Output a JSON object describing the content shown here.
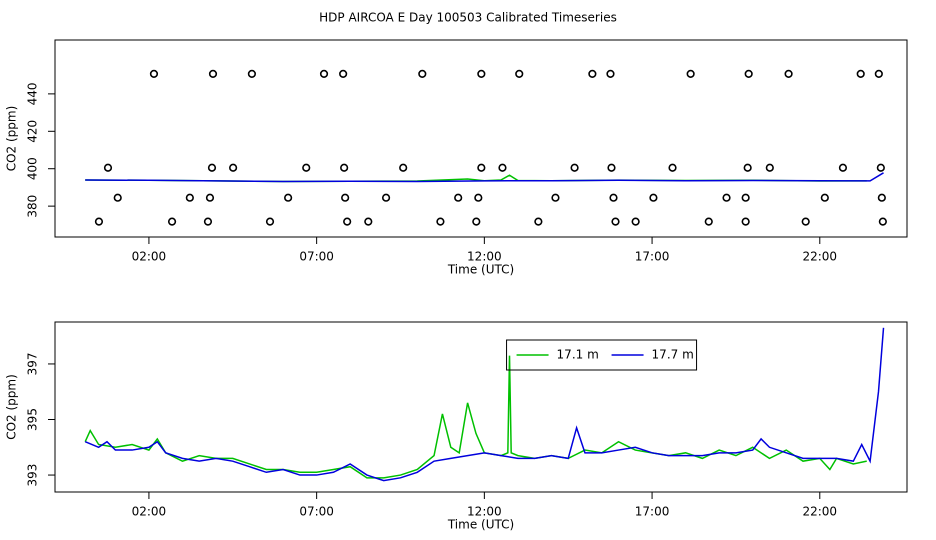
{
  "chart_data": [
    {
      "type": "line",
      "title": "HDP AIRCOA E  Day 100503  Calibrated Timeseries",
      "x_label": "Time (UTC)",
      "y_label": "CO2 (ppm)",
      "xlim": [
        -0.8,
        24.6
      ],
      "ylim": [
        363.5,
        468.8
      ],
      "xticks": [
        {
          "value": 2,
          "label": "02:00"
        },
        {
          "value": 7,
          "label": "07:00"
        },
        {
          "value": 12,
          "label": "12:00"
        },
        {
          "value": 17,
          "label": "17:00"
        },
        {
          "value": 22,
          "label": "22:00"
        }
      ],
      "yticks": [
        380,
        400,
        420,
        440
      ],
      "legend": false,
      "series": [
        {
          "type": "line",
          "color": "#00c000",
          "x": [
            0.1,
            2,
            4,
            6,
            8,
            10,
            11.5,
            12,
            12.5,
            12.75,
            13,
            14,
            16,
            18,
            20,
            22,
            23.4
          ],
          "values": [
            394.0,
            393.8,
            393.5,
            393.2,
            393.3,
            393.4,
            394.5,
            393.6,
            394.0,
            396.5,
            393.7,
            393.6,
            393.9,
            393.7,
            393.8,
            393.4,
            393.5
          ]
        },
        {
          "type": "line",
          "color": "#0000dd",
          "x": [
            0.1,
            2,
            4,
            6,
            8,
            10,
            12,
            14,
            16,
            18,
            20,
            22,
            23.5,
            23.9
          ],
          "values": [
            394.0,
            393.8,
            393.5,
            393.2,
            393.3,
            393.2,
            393.5,
            393.6,
            393.8,
            393.6,
            393.7,
            393.6,
            393.5,
            397.8
          ]
        },
        {
          "type": "scatter",
          "color": "#000000",
          "x": [
            2.15,
            3.91,
            5.07,
            7.22,
            7.79,
            10.15,
            11.91,
            13.04,
            15.22,
            15.76,
            18.15,
            19.88,
            21.07,
            23.22,
            23.76,
            0.78,
            3.88,
            4.51,
            6.69,
            7.82,
            9.58,
            11.91,
            12.54,
            14.69,
            15.79,
            17.61,
            19.85,
            20.51,
            22.69,
            23.82,
            1.07,
            3.22,
            3.82,
            6.15,
            7.85,
            9.07,
            11.22,
            11.82,
            14.12,
            15.85,
            17.04,
            19.22,
            19.79,
            22.15,
            23.85,
            0.51,
            2.69,
            3.76,
            5.61,
            7.91,
            8.54,
            10.69,
            11.76,
            13.61,
            15.91,
            16.51,
            18.69,
            19.79,
            21.58,
            23.88
          ],
          "values": [
            450.7,
            450.7,
            450.7,
            450.7,
            450.7,
            450.7,
            450.7,
            450.7,
            450.7,
            450.7,
            450.7,
            450.7,
            450.7,
            450.7,
            450.7,
            400.5,
            400.5,
            400.5,
            400.5,
            400.5,
            400.5,
            400.5,
            400.5,
            400.5,
            400.5,
            400.5,
            400.5,
            400.5,
            400.5,
            400.5,
            384.5,
            384.5,
            384.5,
            384.5,
            384.5,
            384.5,
            384.5,
            384.5,
            384.5,
            384.5,
            384.5,
            384.5,
            384.5,
            384.5,
            384.5,
            371.7,
            371.7,
            371.7,
            371.7,
            371.7,
            371.7,
            371.7,
            371.7,
            371.7,
            371.7,
            371.7,
            371.7,
            371.7,
            371.7,
            371.7
          ]
        }
      ]
    },
    {
      "type": "line",
      "x_label": "Time (UTC)",
      "y_label": "CO2 (ppm)",
      "xlim": [
        -0.8,
        24.6
      ],
      "ylim": [
        392.39,
        398.51
      ],
      "xticks": [
        {
          "value": 2,
          "label": "02:00"
        },
        {
          "value": 7,
          "label": "07:00"
        },
        {
          "value": 12,
          "label": "12:00"
        },
        {
          "value": 17,
          "label": "17:00"
        },
        {
          "value": 22,
          "label": "22:00"
        }
      ],
      "yticks": [
        393,
        395,
        397
      ],
      "legend": true,
      "legend_position": "top-center",
      "series": [
        {
          "name": "17.1 m",
          "type": "line",
          "color": "#00c000",
          "x": [
            0.1,
            0.25,
            0.5,
            1.0,
            1.5,
            2.0,
            2.25,
            2.5,
            3.0,
            3.5,
            4.0,
            4.5,
            5.0,
            5.5,
            6.0,
            6.5,
            7.0,
            7.5,
            8.0,
            8.5,
            9.0,
            9.5,
            10.0,
            10.5,
            10.75,
            11.0,
            11.25,
            11.5,
            11.75,
            12.0,
            12.5,
            12.7,
            12.75,
            12.8,
            13.0,
            13.5,
            14.0,
            14.5,
            15.0,
            15.5,
            16.0,
            16.5,
            17.0,
            17.5,
            18.0,
            18.5,
            19.0,
            19.5,
            20.0,
            20.5,
            21.0,
            21.5,
            22.0,
            22.3,
            22.5,
            23.0,
            23.4
          ],
          "values": [
            394.2,
            394.6,
            394.1,
            394.0,
            394.1,
            393.9,
            394.3,
            393.8,
            393.5,
            393.7,
            393.6,
            393.6,
            393.4,
            393.2,
            393.2,
            393.1,
            393.1,
            393.2,
            393.3,
            392.9,
            392.9,
            393.0,
            393.2,
            393.7,
            395.2,
            394.0,
            393.8,
            395.6,
            394.5,
            393.8,
            393.7,
            393.8,
            397.3,
            393.8,
            393.7,
            393.6,
            393.7,
            393.6,
            393.9,
            393.8,
            394.2,
            393.9,
            393.8,
            393.7,
            393.8,
            393.6,
            393.9,
            393.7,
            394.0,
            393.6,
            393.9,
            393.5,
            393.6,
            393.2,
            393.6,
            393.4,
            393.5
          ]
        },
        {
          "name": "17.7 m",
          "type": "line",
          "color": "#0000dd",
          "x": [
            0.1,
            0.5,
            0.75,
            1.0,
            1.5,
            2.0,
            2.25,
            2.5,
            3.0,
            3.5,
            4.0,
            4.5,
            5.0,
            5.5,
            6.0,
            6.5,
            7.0,
            7.5,
            8.0,
            8.5,
            9.0,
            9.5,
            10.0,
            10.5,
            11.0,
            11.5,
            12.0,
            12.5,
            13.0,
            13.5,
            14.0,
            14.5,
            14.75,
            15.0,
            15.5,
            16.0,
            16.5,
            17.0,
            17.5,
            18.0,
            18.5,
            19.0,
            19.5,
            20.0,
            20.25,
            20.5,
            21.0,
            21.5,
            22.0,
            22.5,
            23.0,
            23.25,
            23.5,
            23.75,
            23.9
          ],
          "values": [
            394.2,
            394.0,
            394.2,
            393.9,
            393.9,
            394.0,
            394.2,
            393.8,
            393.6,
            393.5,
            393.6,
            393.5,
            393.3,
            393.1,
            393.2,
            393.0,
            393.0,
            393.1,
            393.4,
            393.0,
            392.8,
            392.9,
            393.1,
            393.5,
            393.6,
            393.7,
            393.8,
            393.7,
            393.6,
            393.6,
            393.7,
            393.6,
            394.7,
            393.8,
            393.8,
            393.9,
            394.0,
            393.8,
            393.7,
            393.7,
            393.7,
            393.8,
            393.8,
            393.9,
            394.3,
            394.0,
            393.8,
            393.6,
            393.6,
            393.6,
            393.5,
            394.1,
            393.5,
            396.0,
            398.3
          ]
        }
      ]
    }
  ]
}
